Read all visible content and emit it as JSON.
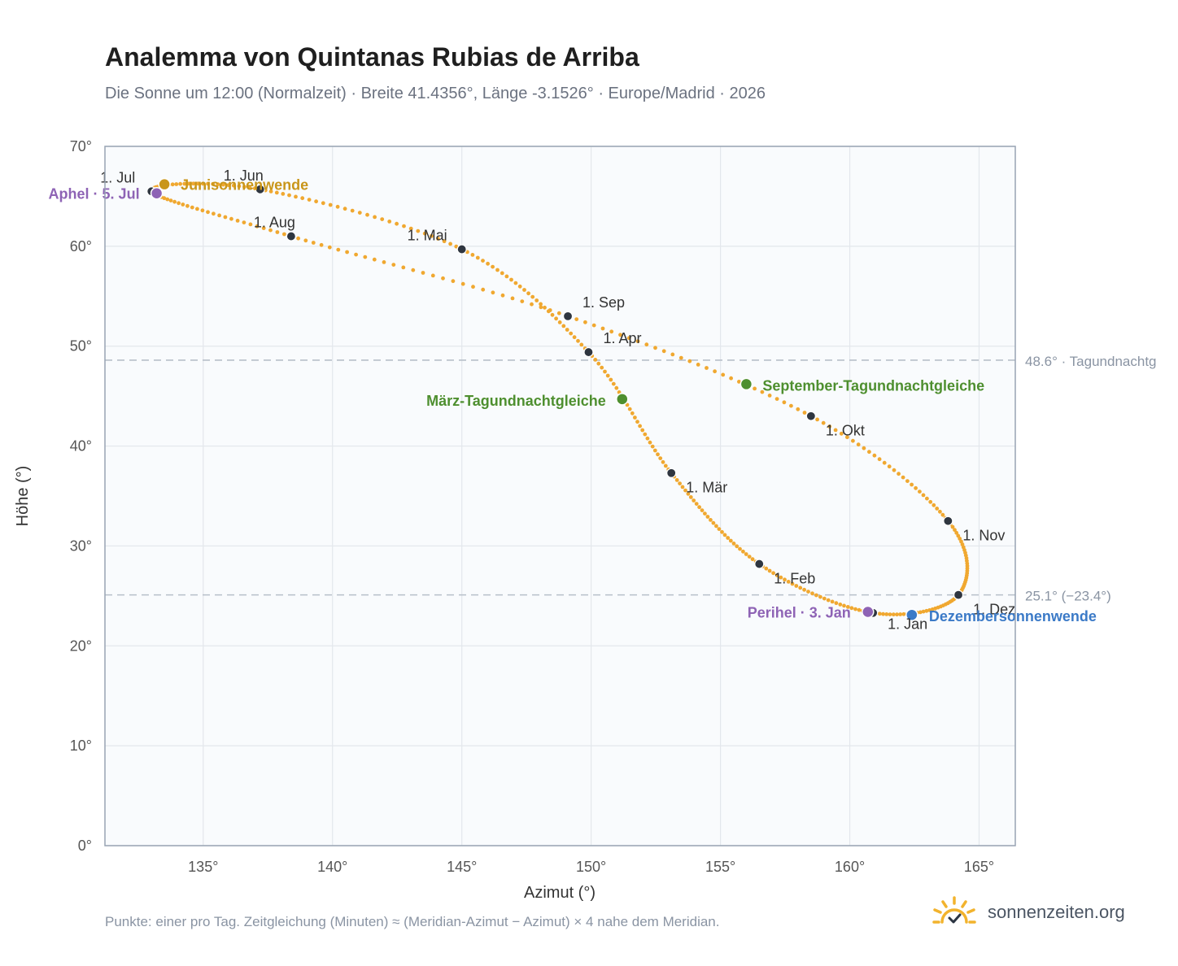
{
  "header": {
    "title": "Analemma von Quintanas Rubias de Arriba",
    "subtitle": "Die Sonne um 12:00 (Normalzeit) · Breite 41.4356°, Länge -3.1526° · Europe/Madrid · 2026"
  },
  "footer": {
    "note": "Punkte: einer pro Tag. Zeitgleichung (Minuten) ≈ (Meridian-Azimut − Azimut) × 4 nahe dem Meridian.",
    "brand": "sonnenzeiten.org"
  },
  "chart_data": {
    "type": "scatter",
    "xlabel": "Azimut (°)",
    "ylabel": "Höhe (°)",
    "xlim": [
      131.2,
      166.4
    ],
    "ylim": [
      0,
      70
    ],
    "xticks": [
      135,
      140,
      145,
      150,
      155,
      160,
      165
    ],
    "yticks": [
      0,
      10,
      20,
      30,
      40,
      50,
      60,
      70
    ],
    "tick_suffix": "°",
    "grid": true,
    "colors": {
      "curve": "#f0a830",
      "month_marker": "#2f3640",
      "equinox": "#4e8f2f",
      "june_solstice": "#c9961a",
      "december_solstice": "#3b7ac7",
      "perihelion_aphelion": "#8e63b5",
      "reference_line": "#b8c0ca",
      "plot_background": "#f9fbfd",
      "frame": "#98a4b3"
    },
    "analemma_monthly": [
      {
        "label": "1. Jan",
        "x": 160.9,
        "y": 23.3
      },
      {
        "label": "1. Feb",
        "x": 156.5,
        "y": 28.2
      },
      {
        "label": "1. Mär",
        "x": 153.1,
        "y": 37.3
      },
      {
        "label": "1. Apr",
        "x": 149.9,
        "y": 49.4
      },
      {
        "label": "1. Mai",
        "x": 145.0,
        "y": 59.7
      },
      {
        "label": "1. Jun",
        "x": 137.2,
        "y": 65.7
      },
      {
        "label": "1. Jul",
        "x": 133.0,
        "y": 65.5
      },
      {
        "label": "1. Aug",
        "x": 138.4,
        "y": 61.0
      },
      {
        "label": "1. Sep",
        "x": 149.1,
        "y": 53.0
      },
      {
        "label": "1. Okt",
        "x": 158.5,
        "y": 43.0
      },
      {
        "label": "1. Nov",
        "x": 163.8,
        "y": 32.5
      },
      {
        "label": "1. Dez",
        "x": 164.2,
        "y": 25.1
      }
    ],
    "events": [
      {
        "label": "März-Tagundnachtgleiche",
        "x": 151.2,
        "y": 44.7,
        "kind": "equinox"
      },
      {
        "label": "Junisonnenwende",
        "x": 133.5,
        "y": 66.2,
        "kind": "june_solstice"
      },
      {
        "label": "September-Tagundnachtgleiche",
        "x": 156.0,
        "y": 46.2,
        "kind": "equinox"
      },
      {
        "label": "Dezembersonnenwende",
        "x": 162.4,
        "y": 23.1,
        "kind": "december_solstice"
      },
      {
        "label": "Perihel · 3. Jan",
        "x": 160.7,
        "y": 23.4,
        "kind": "perihelion_aphelion"
      },
      {
        "label": "Aphel · 5. Jul",
        "x": 133.2,
        "y": 65.3,
        "kind": "perihelion_aphelion"
      }
    ],
    "reference_lines": [
      {
        "label": "48.6° · Tagundnachtg",
        "y": 48.6
      },
      {
        "label": "25.1° (−23.4°)",
        "y": 25.1
      }
    ]
  }
}
